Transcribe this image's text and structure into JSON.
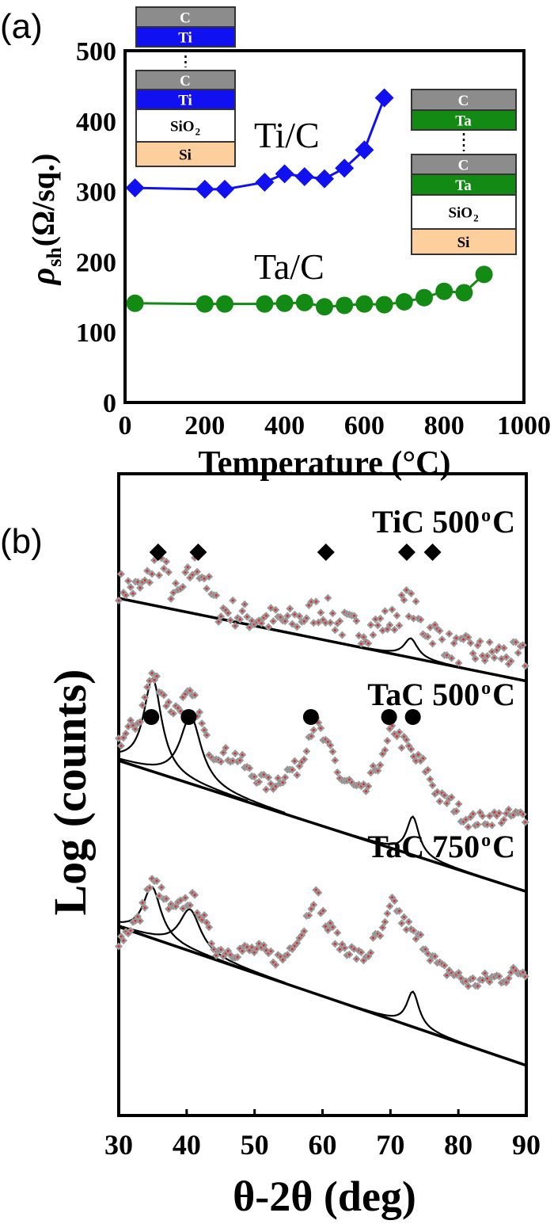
{
  "colors": {
    "ti": "#1010f0",
    "ta": "#138a13",
    "carbon": "#8c8c8c",
    "si": "#fccf9d",
    "sio2": "#ffffff",
    "xrd_marker": "#999999",
    "xrd_center": "#ee2222"
  },
  "chart_data": [
    {
      "panel_label": "(a)",
      "type": "line",
      "xlabel": "Temperature (°C)",
      "ylabel_main": "ρ",
      "ylabel_sub": "sh",
      "ylabel_unit": " (Ω/sq.)",
      "xlim": [
        0,
        1000
      ],
      "ylim": [
        0,
        500
      ],
      "xticks": [
        "0",
        "200",
        "400",
        "600",
        "800",
        "1000"
      ],
      "yticks": [
        "0",
        "100",
        "200",
        "300",
        "400",
        "500"
      ],
      "grid": false,
      "series": [
        {
          "name": "Ti/C",
          "marker": "diamond",
          "color": "#1010f0",
          "x": [
            25,
            200,
            250,
            350,
            400,
            450,
            500,
            550,
            600,
            650
          ],
          "y": [
            305,
            303,
            303,
            313,
            325,
            321,
            318,
            333,
            359,
            433
          ]
        },
        {
          "name": "Ta/C",
          "marker": "circle",
          "color": "#138a13",
          "x": [
            25,
            200,
            250,
            350,
            400,
            450,
            500,
            550,
            600,
            650,
            700,
            750,
            800,
            850,
            900
          ],
          "y": [
            141,
            140,
            140,
            140,
            141,
            142,
            136,
            138,
            140,
            139,
            143,
            149,
            158,
            156,
            182
          ]
        }
      ],
      "insets": [
        {
          "layers": [
            {
              "label": "C",
              "color": "#8c8c8c"
            },
            {
              "label": "Ti",
              "color": "#1010f0"
            },
            {
              "label": "C",
              "color": "#8c8c8c"
            },
            {
              "label": "Ti",
              "color": "#1010f0"
            },
            {
              "label": "SiO",
              "sub": "2",
              "color": "#ffffff"
            },
            {
              "label": "Si",
              "color": "#fccf9d"
            }
          ]
        },
        {
          "layers": [
            {
              "label": "C",
              "color": "#8c8c8c"
            },
            {
              "label": "Ta",
              "color": "#138a13"
            },
            {
              "label": "C",
              "color": "#8c8c8c"
            },
            {
              "label": "Ta",
              "color": "#138a13"
            },
            {
              "label": "SiO",
              "sub": "2",
              "color": "#ffffff"
            },
            {
              "label": "Si",
              "color": "#fccf9d"
            }
          ]
        }
      ]
    },
    {
      "panel_label": "(b)",
      "type": "scatter",
      "xlabel": "θ-2θ (deg)",
      "ylabel": "Log (counts)",
      "xlim": [
        30,
        90
      ],
      "xticks": [
        "30",
        "40",
        "50",
        "60",
        "70",
        "80",
        "90"
      ],
      "y_scale": "log, arbitrary offset",
      "grid": false,
      "series": [
        {
          "name": "TiC 500°C",
          "name_main": "TiC 500",
          "name_sup": "o",
          "name_end": "C",
          "peak_marker": "diamond",
          "peak_positions": [
            35.8,
            41.7,
            60.5,
            72.4,
            76.2
          ],
          "x": [
            30,
            33,
            36,
            38.5,
            41.5,
            45,
            50,
            55,
            60,
            63,
            66,
            70,
            72.5,
            75,
            80,
            85,
            90
          ],
          "y": [
            82.5,
            82,
            86.2,
            81,
            85.5,
            78.8,
            77.5,
            77,
            78.8,
            76.5,
            75.7,
            77,
            80,
            76,
            72.6,
            72,
            71.4
          ],
          "baseline": [
            [
              30,
              80.6
            ],
            [
              90,
              67.7
            ]
          ],
          "fit_components": [
            {
              "center": 73,
              "height": 3,
              "hwhm": 1.2
            }
          ]
        },
        {
          "name": "TaC 500°C",
          "name_main": "TaC 500",
          "name_sup": "o",
          "name_end": "C",
          "peak_marker": "circle",
          "peak_positions": [
            34.8,
            40.3,
            58.3,
            69.8,
            73.3
          ],
          "x": [
            30,
            32.5,
            35,
            38,
            40.5,
            44,
            47,
            50,
            52,
            56,
            59,
            61,
            63,
            66,
            68.5,
            70.5,
            72,
            74,
            78,
            82,
            86,
            90
          ],
          "y": [
            58.4,
            61,
            68.3,
            63.3,
            65.2,
            56.5,
            56,
            53,
            51.6,
            54,
            60.9,
            57,
            52.2,
            50.4,
            55,
            60.2,
            58,
            55.3,
            49.1,
            46,
            46.5,
            46.7
          ],
          "baseline": [
            [
              30,
              55.3
            ],
            [
              90,
              34.9
            ]
          ],
          "fit_components": [
            {
              "center": 35,
              "height": 14.5,
              "hwhm": 1.6
            },
            {
              "center": 40.6,
              "height": 10.5,
              "hwhm": 1.9
            },
            {
              "center": 73.3,
              "height": 6,
              "hwhm": 1.1
            }
          ]
        },
        {
          "name": "TaC 750°C",
          "name_main": "TaC 750",
          "name_sup": "o",
          "name_end": "C",
          "x": [
            30,
            32.5,
            35,
            38,
            40.5,
            45,
            50,
            54,
            56.5,
            59,
            61,
            63,
            66,
            68.5,
            70.5,
            72,
            74,
            78,
            82,
            86,
            90
          ],
          "y": [
            27.5,
            30,
            36.2,
            31.9,
            33.7,
            25.7,
            25.7,
            24.4,
            28,
            34.3,
            29,
            26.3,
            24.6,
            28,
            33,
            30,
            27.5,
            22.6,
            20.7,
            21.5,
            22.6
          ],
          "baseline": [
            [
              30,
              29.4
            ],
            [
              90,
              7.8
            ]
          ],
          "fit_components": [
            {
              "center": 34.9,
              "height": 8,
              "hwhm": 1.6
            },
            {
              "center": 40.5,
              "height": 6.5,
              "hwhm": 1.9
            },
            {
              "center": 73.3,
              "height": 5.5,
              "hwhm": 1.1
            }
          ]
        }
      ]
    }
  ]
}
